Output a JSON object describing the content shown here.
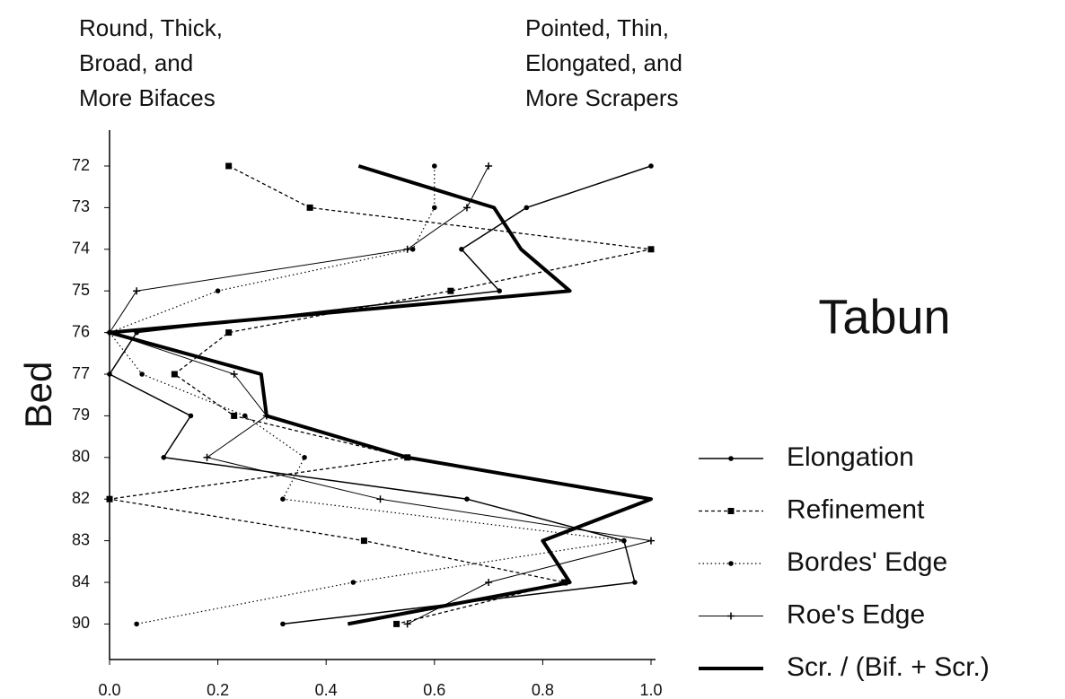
{
  "chart_data": {
    "type": "line",
    "orientation": "horizontal",
    "annotations": [
      {
        "lines": [
          "Round, Thick,",
          "Broad, and",
          "More Bifaces"
        ]
      },
      {
        "lines": [
          "Pointed, Thin,",
          "Elongated, and",
          "More Scrapers"
        ]
      }
    ],
    "site_label": "Tabun",
    "y_label": "Bed",
    "categories": [
      "72",
      "73",
      "74",
      "75",
      "76",
      "77",
      "79",
      "80",
      "82",
      "83",
      "84",
      "90"
    ],
    "xlim": [
      0,
      1
    ],
    "xticks": [
      {
        "value": 0,
        "label": "0.0"
      },
      {
        "value": 0.2,
        "label": "0.2"
      },
      {
        "value": 0.4,
        "label": "0.4"
      },
      {
        "value": 0.6,
        "label": "0.6"
      },
      {
        "value": 0.8,
        "label": "0.8"
      },
      {
        "value": 1,
        "label": "1.0"
      }
    ],
    "series": [
      {
        "name": "Elongation",
        "color": "#000000",
        "width": 1.5,
        "dash": "none",
        "marker": "dot",
        "values": [
          1.0,
          0.77,
          0.65,
          0.72,
          0.05,
          0.0,
          0.15,
          0.1,
          0.66,
          0.95,
          0.97,
          0.32
        ]
      },
      {
        "name": "Refinement",
        "color": "#000000",
        "width": 1.3,
        "dash": "4,3",
        "marker": "square",
        "values": [
          0.22,
          0.37,
          1.0,
          0.63,
          0.22,
          0.12,
          0.23,
          0.55,
          0.0,
          0.47,
          0.84,
          0.53
        ]
      },
      {
        "name": "Bordes' Edge",
        "color": "#000000",
        "width": 1.2,
        "dash": "1.5,3",
        "marker": "dot",
        "values": [
          0.6,
          0.6,
          0.56,
          0.2,
          0.0,
          0.06,
          0.25,
          0.36,
          0.32,
          0.95,
          0.45,
          0.05
        ]
      },
      {
        "name": "Roe's Edge",
        "color": "#000000",
        "width": 1,
        "dash": "none",
        "marker": "plus",
        "values": [
          0.7,
          0.66,
          0.55,
          0.05,
          0.0,
          0.23,
          0.29,
          0.18,
          0.5,
          1.0,
          0.7,
          0.55
        ]
      },
      {
        "name": "Scr. / (Bif. + Scr.)",
        "color": "#000000",
        "width": 4,
        "dash": "none",
        "marker": "none",
        "values": [
          0.46,
          0.71,
          0.76,
          0.85,
          0.0,
          0.28,
          0.29,
          0.55,
          1.0,
          0.8,
          0.85,
          0.44
        ]
      }
    ]
  }
}
